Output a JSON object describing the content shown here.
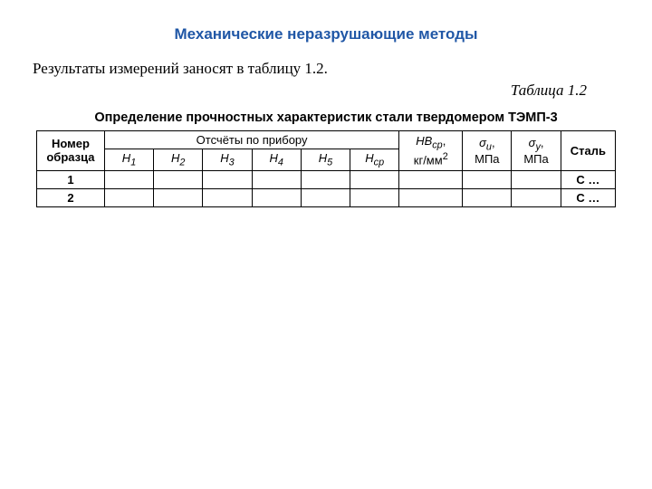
{
  "heading": "Механические неразрушающие методы",
  "intro_text": "Результаты измерений заносят в таблицу 1.2.",
  "table_label": "Таблица 1.2",
  "table_caption": "Определение прочностных характеристик стали твердомером ТЭМП-3",
  "headers": {
    "sample_num": "Номер образца",
    "readings": "Отсчёты по прибору",
    "h1": "H",
    "h2": "H",
    "h3": "H",
    "h4": "H",
    "h5": "H",
    "hcp": "H",
    "hb_top": "HB",
    "hb_sub": "ср",
    "hb_unit": "кг/мм",
    "sigma_u": "σ",
    "sigma_y": "σ",
    "mpa": "МПа",
    "steel": "Сталь"
  },
  "rows": [
    {
      "n": "1",
      "steel": "С …"
    },
    {
      "n": "2",
      "steel": "С …"
    }
  ],
  "colors": {
    "heading_color": "#2057a6",
    "border_color": "#000000",
    "background": "#ffffff"
  },
  "font_sizes": {
    "heading": 17,
    "body": 17,
    "caption": 14.5,
    "table": 13
  }
}
